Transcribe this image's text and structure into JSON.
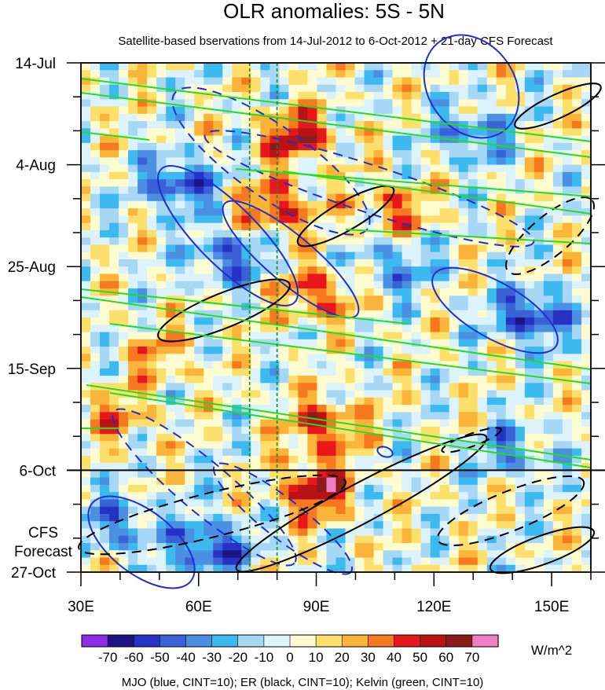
{
  "chart_data": {
    "type": "heatmap",
    "title": "OLR anomalies: 5S - 5N",
    "subtitle": "Satellite-based bservations from 14-Jul-2012 to 6-Oct-2012 + 21-day CFS Forecast",
    "x_axis": {
      "ticks": [
        "30E",
        "60E",
        "90E",
        "120E",
        "150E"
      ],
      "range": [
        30,
        160
      ],
      "units": "degrees longitude"
    },
    "y_axis": {
      "ticks": [
        "14-Jul",
        "4-Aug",
        "25-Aug",
        "15-Sep",
        "6-Oct",
        "27-Oct"
      ],
      "range_days": [
        0,
        105
      ],
      "reversed": true
    },
    "forecast": {
      "start": "6-Oct",
      "label_line1": "CFS",
      "label_line2": "Forecast"
    },
    "reference_lines_lon": [
      73,
      80
    ],
    "colorbar": {
      "units": "W/m^2",
      "labels": [
        "-70",
        "-60",
        "-50",
        "-40",
        "-30",
        "-20",
        "-10",
        "0",
        "10",
        "20",
        "30",
        "40",
        "50",
        "60",
        "70"
      ],
      "colors": [
        "#8d2ce6",
        "#1a1484",
        "#2532c4",
        "#3a62d6",
        "#4b8fe2",
        "#3cb9ee",
        "#a6d8f5",
        "#dcf3fb",
        "#fdfbd0",
        "#fde06b",
        "#fbb43a",
        "#f6781f",
        "#e8171b",
        "#b81214",
        "#8b1c1c",
        "#f07ec5"
      ]
    },
    "overlays": [
      {
        "name": "MJO",
        "color": "blue",
        "cint": 10
      },
      {
        "name": "ER",
        "color": "black",
        "cint": 10
      },
      {
        "name": "Kelvin",
        "color": "green",
        "cint": 10
      }
    ],
    "footnote": "MJO (blue, CINT=10); ER (black, CINT=10); Kelvin (green, CINT=10)",
    "features": [
      {
        "lon": 85,
        "day": 15,
        "value": 55
      },
      {
        "lon": 80,
        "day": 30,
        "value": 50
      },
      {
        "lon": 90,
        "day": 48,
        "value": 45
      },
      {
        "lon": 92,
        "day": 75,
        "value": 50
      },
      {
        "lon": 90,
        "day": 88,
        "value": 60
      },
      {
        "lon": 110,
        "day": 30,
        "value": 35
      },
      {
        "lon": 40,
        "day": 73,
        "value": 30
      },
      {
        "lon": 50,
        "day": 60,
        "value": 25
      },
      {
        "lon": 130,
        "day": 15,
        "value": -40
      },
      {
        "lon": 55,
        "day": 25,
        "value": -55
      },
      {
        "lon": 68,
        "day": 40,
        "value": -45
      },
      {
        "lon": 145,
        "day": 52,
        "value": -60
      },
      {
        "lon": 110,
        "day": 42,
        "value": -35
      },
      {
        "lon": 63,
        "day": 100,
        "value": -60
      },
      {
        "lon": 140,
        "day": 80,
        "value": -35
      },
      {
        "lon": 40,
        "day": 95,
        "value": -40
      }
    ]
  }
}
